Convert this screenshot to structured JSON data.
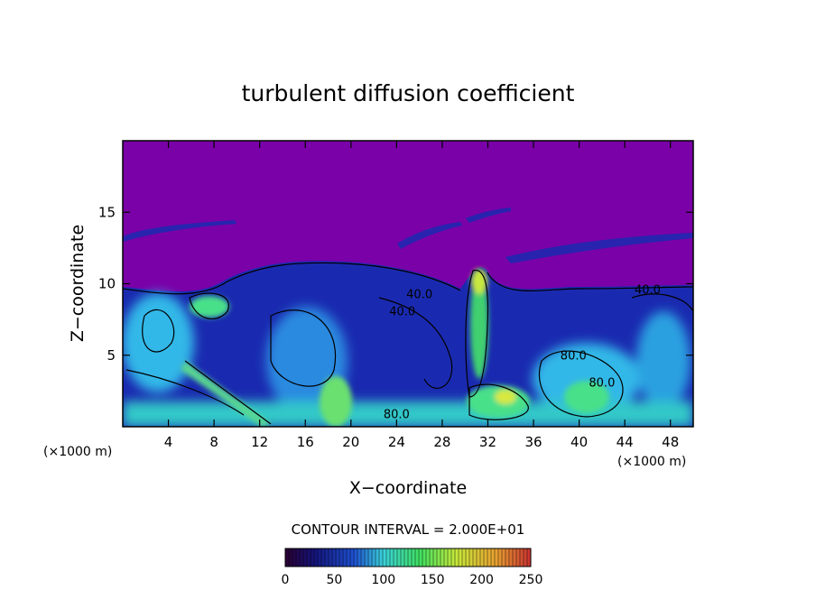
{
  "chart_data": {
    "type": "heatmap",
    "title": "turbulent diffusion coefficient",
    "xlabel": "X−coordinate",
    "ylabel": "Z−coordinate",
    "x_unit": "(×1000 m)",
    "y_unit": "(×1000 m)",
    "xlim": [
      0,
      50
    ],
    "ylim": [
      0,
      20
    ],
    "x_ticks": [
      4,
      8,
      12,
      16,
      20,
      24,
      28,
      32,
      36,
      40,
      44,
      48
    ],
    "y_ticks": [
      5,
      10,
      15
    ],
    "contour_interval_label": "CONTOUR INTERVAL = 2.000E+01",
    "contour_labels": [
      {
        "text": "40.0",
        "x": 26,
        "y": 9.0
      },
      {
        "text": "40.0",
        "x": 24.5,
        "y": 7.8
      },
      {
        "text": "40.0",
        "x": 46,
        "y": 9.3
      },
      {
        "text": "80.0",
        "x": 24,
        "y": 0.6
      },
      {
        "text": "80.0",
        "x": 39.5,
        "y": 4.7
      },
      {
        "text": "80.0",
        "x": 42,
        "y": 2.8
      }
    ],
    "colorbar": {
      "range": [
        0,
        250
      ],
      "ticks": [
        0,
        50,
        100,
        150,
        200,
        250
      ],
      "colors": [
        "#2a0033",
        "#14147a",
        "#1e50d0",
        "#3ad0d8",
        "#40e060",
        "#c8e83a",
        "#e8a030",
        "#c83030"
      ]
    },
    "colors": {
      "background": "#7a00a8",
      "low": "#1a2ab0",
      "mid": "#30b8e8",
      "high": "#4ae08a",
      "peak": "#d8e840"
    }
  }
}
